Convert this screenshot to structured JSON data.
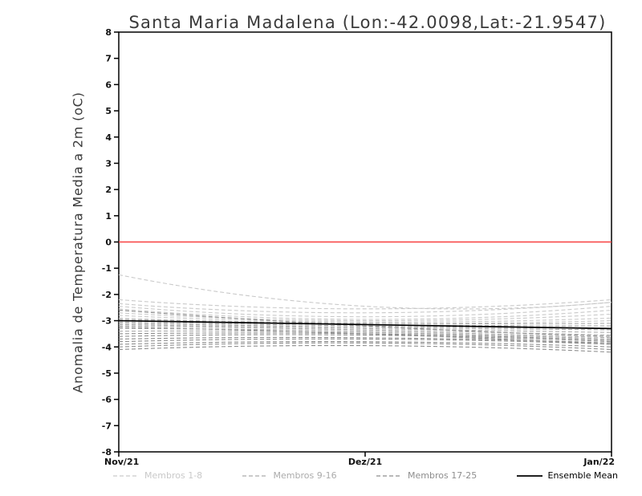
{
  "chart_data": {
    "type": "line",
    "title": "Santa Maria Madalena (Lon:-42.0098,Lat:-21.9547)",
    "ylabel": "Anomalia de Temperatura Media a 2m (oC)",
    "xlabel": "",
    "x": [
      "Nov/21",
      "Dez/21",
      "Jan/22"
    ],
    "ylim": [
      -8,
      8
    ],
    "ytick_step": 1,
    "grid": false,
    "zero_line": {
      "value": 0,
      "color": "#f84040"
    },
    "series_groups": [
      {
        "name": "Membros 1-8",
        "color": "#c9c9c9",
        "style": "dashed",
        "members": [
          [
            -1.25,
            -2.45,
            -2.3
          ],
          [
            -2.2,
            -2.55,
            -2.2
          ],
          [
            -2.35,
            -2.7,
            -2.3
          ],
          [
            -2.45,
            -2.85,
            -2.45
          ],
          [
            -2.55,
            -2.95,
            -2.6
          ],
          [
            -2.7,
            -3.0,
            -2.75
          ],
          [
            -2.8,
            -3.05,
            -2.9
          ],
          [
            -2.9,
            -3.1,
            -3.0
          ]
        ]
      },
      {
        "name": "Membros 9-16",
        "color": "#ababab",
        "style": "dashed",
        "members": [
          [
            -2.95,
            -3.1,
            -3.1
          ],
          [
            -3.0,
            -3.15,
            -3.2
          ],
          [
            -3.05,
            -3.2,
            -3.3
          ],
          [
            -3.1,
            -3.25,
            -3.35
          ],
          [
            -3.15,
            -3.3,
            -3.45
          ],
          [
            -3.2,
            -3.35,
            -3.55
          ],
          [
            -3.3,
            -3.4,
            -3.65
          ],
          [
            -3.4,
            -3.45,
            -3.7
          ]
        ]
      },
      {
        "name": "Membros 17-25",
        "color": "#8e8e8e",
        "style": "dashed",
        "members": [
          [
            -3.5,
            -3.5,
            -3.75
          ],
          [
            -3.6,
            -3.55,
            -3.8
          ],
          [
            -3.7,
            -3.65,
            -3.85
          ],
          [
            -3.8,
            -3.7,
            -3.9
          ],
          [
            -3.9,
            -3.8,
            -4.0
          ],
          [
            -4.0,
            -3.85,
            -4.1
          ],
          [
            -4.1,
            -3.95,
            -4.2
          ],
          [
            -3.25,
            -3.5,
            -3.9
          ],
          [
            -2.6,
            -3.2,
            -3.6
          ]
        ]
      }
    ],
    "mean_series": {
      "name": "Ensemble Mean",
      "color": "#000000",
      "style": "solid",
      "values": [
        -3.0,
        -3.15,
        -3.3
      ]
    },
    "legend": [
      {
        "label": "Membros 1-8",
        "color": "#c9c9c9",
        "dashed": true
      },
      {
        "label": "Membros 9-16",
        "color": "#ababab",
        "dashed": true
      },
      {
        "label": "Membros 17-25",
        "color": "#8e8e8e",
        "dashed": true
      },
      {
        "label": "Ensemble Mean",
        "color": "#000000",
        "dashed": false
      }
    ],
    "legend_position": "bottom"
  }
}
